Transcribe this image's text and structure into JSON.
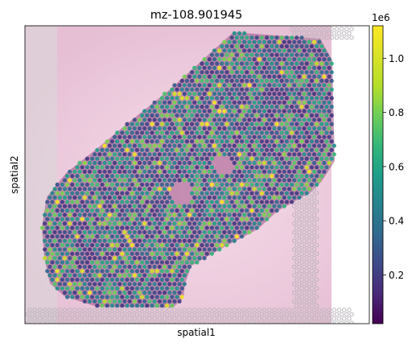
{
  "chart_data": {
    "type": "scatter",
    "title": "mz-108.901945",
    "xlabel": "spatial1",
    "ylabel": "spatial2",
    "colorbar": {
      "colormap": "viridis",
      "scale_label": "1e6",
      "ticks": [
        0.2,
        0.4,
        0.6,
        0.8,
        1.0
      ],
      "tick_labels": [
        "0.2",
        "0.4",
        "0.6",
        "0.8",
        "1.0"
      ],
      "range": [
        0.02,
        1.12
      ]
    },
    "grid": false,
    "legend": "none",
    "background_image": "H&E tissue section (pink stain) with grey unused spot grid",
    "colors": {
      "low": "#440154",
      "mid": "#21918c",
      "high": "#fde725",
      "tissue_pink": "#e9b5cf",
      "unused_spot": "#c9c3c9"
    }
  }
}
